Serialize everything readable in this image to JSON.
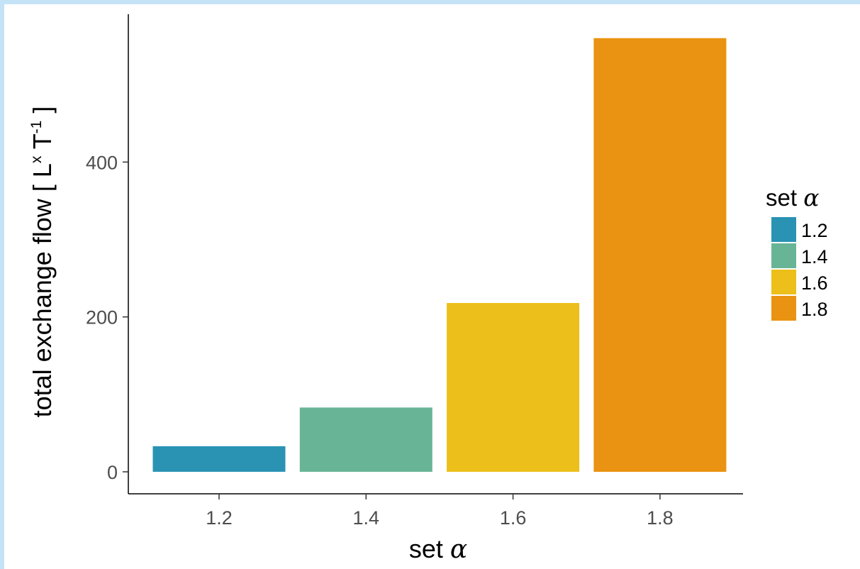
{
  "chart_data": {
    "type": "bar",
    "categories": [
      "1.2",
      "1.4",
      "1.6",
      "1.8"
    ],
    "values": [
      33,
      83,
      218,
      560
    ],
    "colors": [
      "#2a93b4",
      "#67b596",
      "#ecbf1a",
      "#ea9211"
    ],
    "ylim": [
      0,
      575
    ],
    "yticks": [
      "0",
      "200",
      "400"
    ],
    "ylabel_prefix": "total exchange flow [ L",
    "ylabel_sup_x": "x",
    "ylabel_mid": " T",
    "ylabel_sup_neg1": "-1",
    "ylabel_suffix": " ]",
    "xlabel_text": "set ",
    "xlabel_symbol": "α",
    "legend": {
      "title_text": "set ",
      "title_symbol": "α",
      "position": "right",
      "entries": [
        "1.2",
        "1.4",
        "1.6",
        "1.8"
      ]
    },
    "grid": false
  }
}
